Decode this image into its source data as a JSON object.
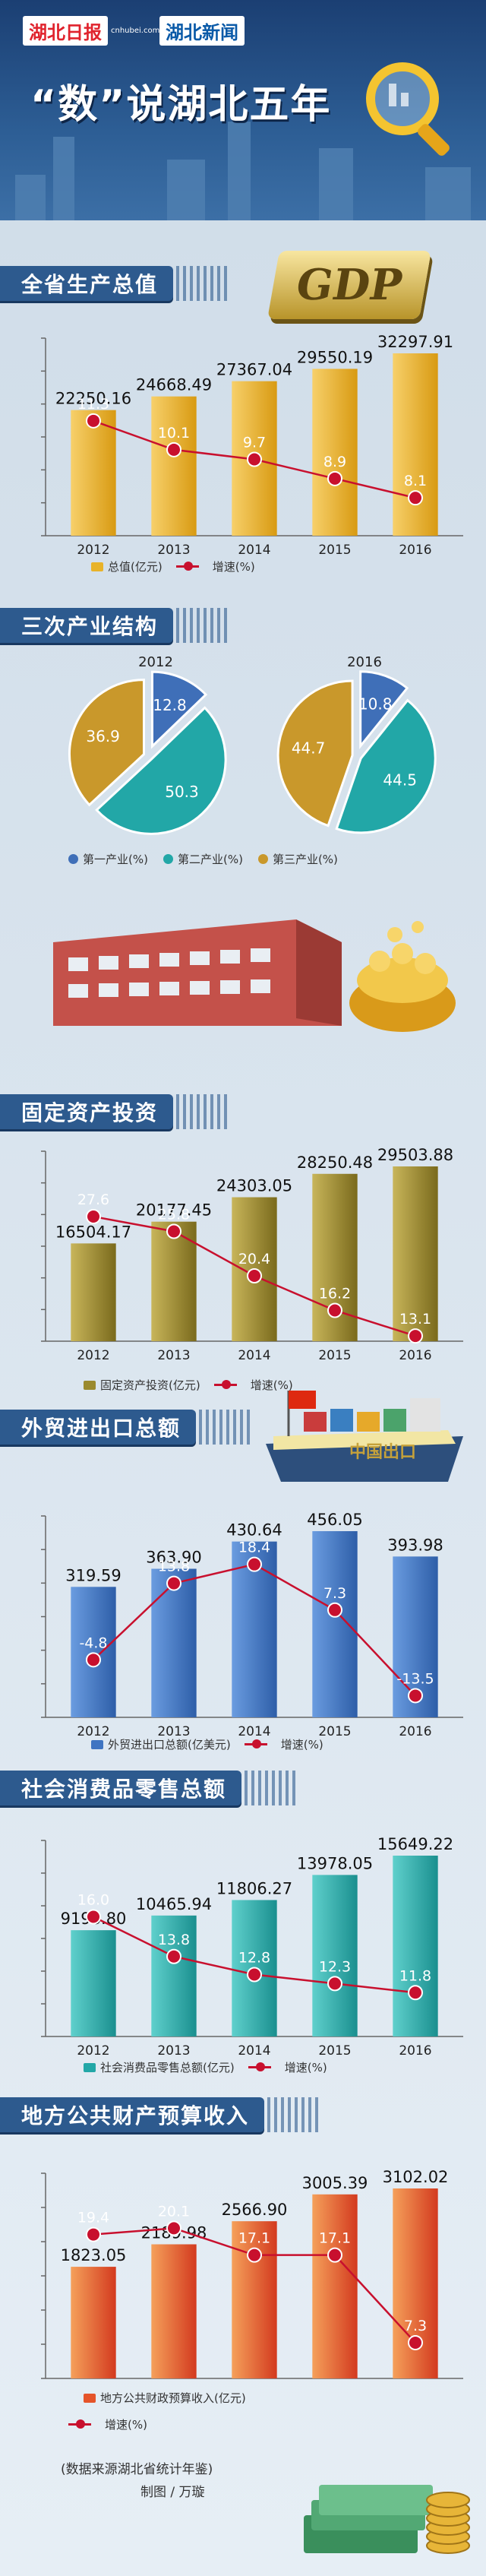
{
  "header": {
    "logo1": "湖北日报",
    "logo1_sub": "cnhubei.com",
    "logo2": "湖北新闻",
    "title": "“数”说湖北五年"
  },
  "sections": {
    "gdp": "全省生产总值",
    "structure": "三次产业结构",
    "investment": "固定资产投资",
    "trade": "外贸进出口总额",
    "retail": "社会消费品零售总额",
    "revenue": "地方公共财产预算收入"
  },
  "decor": {
    "gdp_badge": "GDP",
    "ship_text": "中国出口"
  },
  "colors": {
    "gold": "#e8b32a",
    "olive": "#9b8a2e",
    "blue": "#3f74c2",
    "teal": "#22a7a7",
    "red": "#e5542a",
    "line": "#c8102e",
    "pie1": "#3f6fb8",
    "pie2": "#22a7a7",
    "pie3": "#c9982b"
  },
  "chart_data": [
    {
      "id": "gdp",
      "type": "bar",
      "categories": [
        "2012",
        "2013",
        "2014",
        "2015",
        "2016"
      ],
      "series": [
        {
          "name": "总值(亿元)",
          "values": [
            22250.16,
            24668.49,
            27367.04,
            29550.19,
            32297.91
          ]
        },
        {
          "name": "增速(%)",
          "type": "line",
          "values": [
            11.3,
            10.1,
            9.7,
            8.9,
            8.1
          ]
        }
      ],
      "value_labels": [
        "22250.16",
        "24668.49",
        "27367.04",
        "29550.19",
        "32297.91"
      ],
      "rate_labels": [
        "11.3",
        "10.1",
        "9.7",
        "8.9",
        "8.1"
      ],
      "legend": [
        "总值(亿元)",
        "增速(%)"
      ]
    },
    {
      "id": "structure",
      "type": "pie",
      "charts": [
        {
          "title": "2012",
          "labels": [
            "第一产业(%)",
            "第二产业(%)",
            "第三产业(%)"
          ],
          "values": [
            12.8,
            50.3,
            36.9
          ]
        },
        {
          "title": "2016",
          "labels": [
            "第一产业(%)",
            "第二产业(%)",
            "第三产业(%)"
          ],
          "values": [
            10.8,
            44.5,
            44.7
          ]
        }
      ],
      "legend": [
        "第一产业(%)",
        "第二产业(%)",
        "第三产业(%)"
      ]
    },
    {
      "id": "investment",
      "type": "bar",
      "categories": [
        "2012",
        "2013",
        "2014",
        "2015",
        "2016"
      ],
      "series": [
        {
          "name": "固定资产投资(亿元)",
          "values": [
            16504.17,
            20177.45,
            24303.05,
            28250.48,
            29503.88
          ]
        },
        {
          "name": "增速(%)",
          "type": "line",
          "values": [
            27.6,
            25.8,
            20.4,
            16.2,
            13.1
          ]
        }
      ],
      "value_labels": [
        "16504.17",
        "20177.45",
        "24303.05",
        "28250.48",
        "29503.88"
      ],
      "rate_labels": [
        "27.6",
        "25.8",
        "20.4",
        "16.2",
        "13.1"
      ],
      "legend": [
        "固定资产投资(亿元)",
        "增速(%)"
      ]
    },
    {
      "id": "trade",
      "type": "bar",
      "categories": [
        "2012",
        "2013",
        "2014",
        "2015",
        "2016"
      ],
      "series": [
        {
          "name": "外贸进出口总额(亿美元)",
          "values": [
            319.59,
            363.9,
            430.64,
            456.05,
            393.98
          ]
        },
        {
          "name": "增速(%)",
          "type": "line",
          "values": [
            -4.8,
            13.8,
            18.4,
            7.3,
            -13.5
          ]
        }
      ],
      "value_labels": [
        "319.59",
        "363.90",
        "430.64",
        "456.05",
        "393.98"
      ],
      "rate_labels": [
        "-4.8",
        "13.8",
        "18.4",
        "7.3",
        "-13.5"
      ],
      "legend": [
        "外贸进出口总额(亿美元)",
        "增速(%)"
      ]
    },
    {
      "id": "retail",
      "type": "bar",
      "categories": [
        "2012",
        "2013",
        "2014",
        "2015",
        "2016"
      ],
      "series": [
        {
          "name": "社会消费品零售总额(亿元)",
          "values": [
            9196.8,
            10465.94,
            11806.27,
            13978.05,
            15649.22
          ]
        },
        {
          "name": "增速(%)",
          "type": "line",
          "values": [
            16.0,
            13.8,
            12.8,
            12.3,
            11.8
          ]
        }
      ],
      "value_labels": [
        "9196.80",
        "10465.94",
        "11806.27",
        "13978.05",
        "15649.22"
      ],
      "rate_labels": [
        "16.0",
        "13.8",
        "12.8",
        "12.3",
        "11.8"
      ],
      "legend": [
        "社会消费品零售总额(亿元)",
        "增速(%)"
      ]
    },
    {
      "id": "revenue",
      "type": "bar",
      "categories": [
        "2012",
        "2013",
        "2014",
        "2015",
        "2016"
      ],
      "series": [
        {
          "name": "地方公共财政预算收入(亿元)",
          "values": [
            1823.05,
            2189.98,
            2566.9,
            3005.39,
            3102.02
          ]
        },
        {
          "name": "增速(%)",
          "type": "line",
          "values": [
            19.4,
            20.1,
            17.1,
            17.1,
            7.3
          ]
        }
      ],
      "value_labels": [
        "1823.05",
        "2189.98",
        "2566.90",
        "3005.39",
        "3102.02"
      ],
      "rate_labels": [
        "19.4",
        "20.1",
        "17.1",
        "17.1",
        "7.3"
      ],
      "legend": [
        "地方公共财政预算收入(亿元)",
        "增速(%)"
      ]
    }
  ],
  "footer": {
    "source": "(数据来源湖北省统计年鉴)",
    "credit": "制图 / 万璇"
  }
}
